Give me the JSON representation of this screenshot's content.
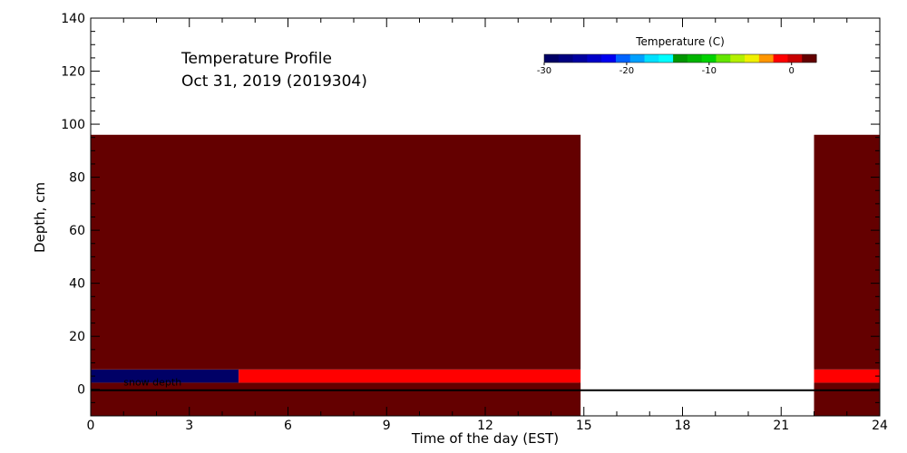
{
  "chart_data": {
    "type": "heatmap",
    "title": "Temperature Profile",
    "subtitle": "Oct 31, 2019 (2019304)",
    "xlabel": "Time of the day (EST)",
    "ylabel": "Depth, cm",
    "xlim": [
      0,
      24
    ],
    "ylim": [
      -10,
      140
    ],
    "x_ticks": [
      "0",
      "3",
      "6",
      "9",
      "12",
      "15",
      "18",
      "21",
      "24"
    ],
    "x_tick_values": [
      0,
      3,
      6,
      9,
      12,
      15,
      18,
      21,
      24
    ],
    "y_ticks": [
      "0",
      "20",
      "40",
      "60",
      "80",
      "100",
      "120",
      "140"
    ],
    "y_tick_values": [
      0,
      20,
      40,
      60,
      80,
      100,
      120,
      140
    ],
    "colorbar": {
      "title": "Temperature (C)",
      "range": [
        -30,
        3
      ],
      "tick_labels": [
        "-30",
        "-20",
        "-10",
        "0"
      ],
      "tick_values": [
        -30,
        -20,
        -10,
        0
      ],
      "colors": [
        "#000066",
        "#000080",
        "#0000a0",
        "#0000c8",
        "#0000f0",
        "#0064ff",
        "#00a0ff",
        "#00e0ff",
        "#00ffff",
        "#009600",
        "#00b400",
        "#00d200",
        "#64e600",
        "#b4f000",
        "#f0f000",
        "#ff9600",
        "#ff0000",
        "#c80000",
        "#640000"
      ]
    },
    "cells": [
      {
        "x0": 0,
        "x1": 4.5,
        "y0": 2.5,
        "y1": 7.5,
        "temp": -30,
        "color": "#000066"
      },
      {
        "x0": 4.5,
        "x1": 14.9,
        "y0": 2.5,
        "y1": 7.5,
        "temp": 1,
        "color": "#ff0000"
      },
      {
        "x0": 22,
        "x1": 24,
        "y0": 2.5,
        "y1": 7.5,
        "temp": 1,
        "color": "#ff0000"
      },
      {
        "x0": 0,
        "x1": 14.9,
        "y0": 7.5,
        "y1": 96,
        "temp": 3,
        "color": "#640000"
      },
      {
        "x0": 22,
        "x1": 24,
        "y0": 7.5,
        "y1": 96,
        "temp": 3,
        "color": "#640000"
      },
      {
        "x0": 0,
        "x1": 14.9,
        "y0": -10,
        "y1": 2.5,
        "temp": 3,
        "color": "#640000"
      },
      {
        "x0": 22,
        "x1": 24,
        "y0": -10,
        "y1": 2.5,
        "temp": 3,
        "color": "#640000"
      }
    ],
    "snow_depth": {
      "label": "snow depth",
      "value": 0
    },
    "grid": false
  }
}
